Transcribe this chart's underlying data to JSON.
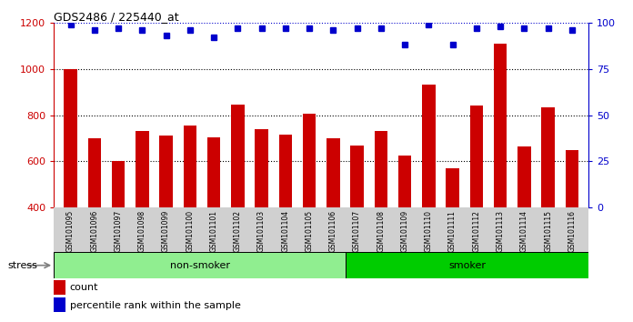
{
  "title": "GDS2486 / 225440_at",
  "samples": [
    "GSM101095",
    "GSM101096",
    "GSM101097",
    "GSM101098",
    "GSM101099",
    "GSM101100",
    "GSM101101",
    "GSM101102",
    "GSM101103",
    "GSM101104",
    "GSM101105",
    "GSM101106",
    "GSM101107",
    "GSM101108",
    "GSM101109",
    "GSM101110",
    "GSM101111",
    "GSM101112",
    "GSM101113",
    "GSM101114",
    "GSM101115",
    "GSM101116"
  ],
  "counts": [
    1000,
    700,
    600,
    730,
    710,
    755,
    705,
    845,
    740,
    715,
    805,
    700,
    670,
    730,
    625,
    930,
    570,
    840,
    1110,
    665,
    835,
    650
  ],
  "percentile_ranks": [
    99,
    96,
    97,
    96,
    93,
    96,
    92,
    97,
    97,
    97,
    97,
    96,
    97,
    97,
    88,
    99,
    88,
    97,
    98,
    97,
    97,
    96
  ],
  "non_smoker_count": 12,
  "smoker_count": 10,
  "bar_color": "#cc0000",
  "percentile_color": "#0000cc",
  "ylim_left": [
    400,
    1200
  ],
  "ylim_right": [
    0,
    100
  ],
  "yticks_left": [
    400,
    600,
    800,
    1000,
    1200
  ],
  "yticks_right": [
    0,
    25,
    50,
    75,
    100
  ],
  "grid_values": [
    600,
    800,
    1000
  ],
  "non_smoker_color": "#90EE90",
  "smoker_color": "#00CC00",
  "stress_label": "stress",
  "legend_count_label": "count",
  "legend_percentile_label": "percentile rank within the sample",
  "plot_bg_color": "#ffffff"
}
